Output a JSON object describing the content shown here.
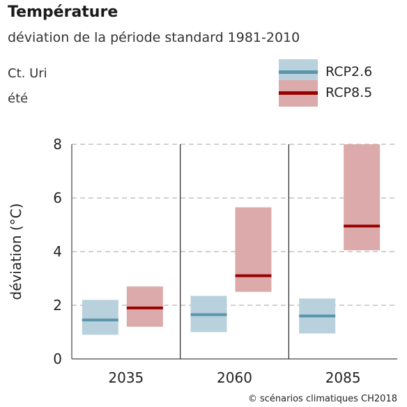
{
  "header": {
    "title": "Température",
    "subtitle": "déviation de la période standard 1981-2010",
    "region": "Ct. Uri",
    "season": "été"
  },
  "legend": [
    {
      "label": "RCP2.6",
      "box_color": "#b8d1dc",
      "line_color": "#5a95ab"
    },
    {
      "label": "RCP8.5",
      "box_color": "#dcaaaa",
      "line_color": "#990000"
    }
  ],
  "footer": "© scénarios climatiques CH2018",
  "chart_data": {
    "type": "box-range",
    "ylabel": "déviation (°C)",
    "ylim": [
      0,
      8
    ],
    "yticks": [
      0,
      2,
      4,
      6,
      8
    ],
    "grid": "horizontal dashed",
    "categories": [
      "2035",
      "2060",
      "2085"
    ],
    "series": [
      {
        "name": "RCP2.6",
        "box_color": "#b8d1dc",
        "line_color": "#5a95ab",
        "low": [
          0.9,
          1.0,
          0.95
        ],
        "median": [
          1.45,
          1.65,
          1.6
        ],
        "high": [
          2.2,
          2.35,
          2.25
        ]
      },
      {
        "name": "RCP8.5",
        "box_color": "#dcaaaa",
        "line_color": "#990000",
        "low": [
          1.2,
          2.5,
          4.05
        ],
        "median": [
          1.9,
          3.1,
          4.95
        ],
        "high": [
          2.7,
          5.65,
          8.0
        ]
      }
    ]
  }
}
